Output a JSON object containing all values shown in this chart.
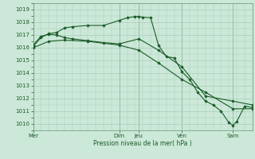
{
  "xlabel": "Pression niveau de la mer( hPa )",
  "background_color": "#cce8d8",
  "grid_color": "#aaccbb",
  "line_color": "#1a5c28",
  "ylim": [
    1009.5,
    1019.5
  ],
  "yticks": [
    1010,
    1011,
    1012,
    1013,
    1014,
    1015,
    1016,
    1017,
    1018,
    1019
  ],
  "xlim": [
    0,
    28
  ],
  "day_labels": [
    "Mer",
    "Dim",
    "Jeu",
    "Ven",
    "Sam"
  ],
  "day_positions": [
    0,
    11,
    13.5,
    19,
    25.5
  ],
  "vline_positions": [
    0,
    11,
    13.5,
    19,
    25.5
  ],
  "series": [
    {
      "x": [
        0,
        2,
        4,
        7,
        11,
        13.5,
        16,
        19,
        22,
        25.5,
        28
      ],
      "y": [
        1016.0,
        1016.5,
        1016.6,
        1016.5,
        1016.2,
        1015.8,
        1014.8,
        1013.5,
        1012.5,
        1011.2,
        1011.2
      ]
    },
    {
      "x": [
        0,
        1,
        2,
        3,
        4,
        5,
        7,
        9,
        11,
        12,
        13,
        13.5,
        14,
        15,
        16,
        17,
        18,
        19,
        20,
        21,
        22,
        23,
        24,
        25,
        25.5,
        26,
        27,
        28
      ],
      "y": [
        1016.1,
        1016.8,
        1017.1,
        1017.2,
        1017.55,
        1017.65,
        1017.75,
        1017.75,
        1018.15,
        1018.35,
        1018.45,
        1018.45,
        1018.4,
        1018.35,
        1016.2,
        1015.3,
        1015.2,
        1014.1,
        1013.5,
        1012.5,
        1011.8,
        1011.5,
        1011.0,
        1010.1,
        1009.9,
        1010.2,
        1011.4,
        1011.3
      ]
    },
    {
      "x": [
        0,
        1,
        2,
        3,
        4,
        5,
        7,
        9,
        11,
        13.5,
        16,
        19,
        22,
        25.5,
        28
      ],
      "y": [
        1016.2,
        1016.9,
        1017.05,
        1017.0,
        1016.8,
        1016.7,
        1016.55,
        1016.4,
        1016.3,
        1016.7,
        1015.8,
        1014.5,
        1012.2,
        1011.8,
        1011.5
      ]
    }
  ]
}
